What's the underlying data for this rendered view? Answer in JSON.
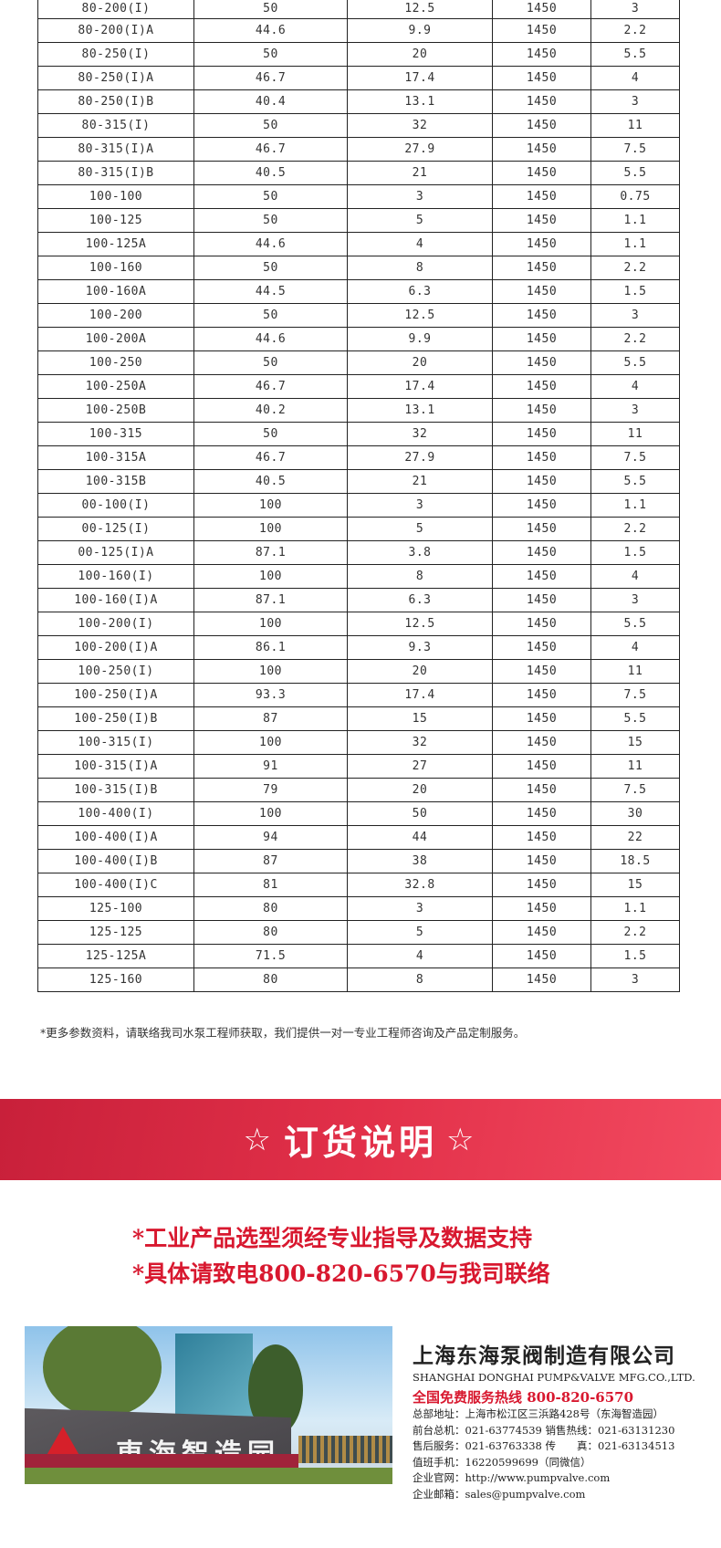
{
  "table": {
    "rows": [
      [
        "80-200(I)",
        "50",
        "12.5",
        "1450",
        "3"
      ],
      [
        "80-200(I)A",
        "44.6",
        "9.9",
        "1450",
        "2.2"
      ],
      [
        "80-250(I)",
        "50",
        "20",
        "1450",
        "5.5"
      ],
      [
        "80-250(I)A",
        "46.7",
        "17.4",
        "1450",
        "4"
      ],
      [
        "80-250(I)B",
        "40.4",
        "13.1",
        "1450",
        "3"
      ],
      [
        "80-315(I)",
        "50",
        "32",
        "1450",
        "11"
      ],
      [
        "80-315(I)A",
        "46.7",
        "27.9",
        "1450",
        "7.5"
      ],
      [
        "80-315(I)B",
        "40.5",
        "21",
        "1450",
        "5.5"
      ],
      [
        "100-100",
        "50",
        "3",
        "1450",
        "0.75"
      ],
      [
        "100-125",
        "50",
        "5",
        "1450",
        "1.1"
      ],
      [
        "100-125A",
        "44.6",
        "4",
        "1450",
        "1.1"
      ],
      [
        "100-160",
        "50",
        "8",
        "1450",
        "2.2"
      ],
      [
        "100-160A",
        "44.5",
        "6.3",
        "1450",
        "1.5"
      ],
      [
        "100-200",
        "50",
        "12.5",
        "1450",
        "3"
      ],
      [
        "100-200A",
        "44.6",
        "9.9",
        "1450",
        "2.2"
      ],
      [
        "100-250",
        "50",
        "20",
        "1450",
        "5.5"
      ],
      [
        "100-250A",
        "46.7",
        "17.4",
        "1450",
        "4"
      ],
      [
        "100-250B",
        "40.2",
        "13.1",
        "1450",
        "3"
      ],
      [
        "100-315",
        "50",
        "32",
        "1450",
        "11"
      ],
      [
        "100-315A",
        "46.7",
        "27.9",
        "1450",
        "7.5"
      ],
      [
        "100-315B",
        "40.5",
        "21",
        "1450",
        "5.5"
      ],
      [
        "00-100(I)",
        "100",
        "3",
        "1450",
        "1.1"
      ],
      [
        "00-125(I)",
        "100",
        "5",
        "1450",
        "2.2"
      ],
      [
        "00-125(I)A",
        "87.1",
        "3.8",
        "1450",
        "1.5"
      ],
      [
        "100-160(I)",
        "100",
        "8",
        "1450",
        "4"
      ],
      [
        "100-160(I)A",
        "87.1",
        "6.3",
        "1450",
        "3"
      ],
      [
        "100-200(I)",
        "100",
        "12.5",
        "1450",
        "5.5"
      ],
      [
        "100-200(I)A",
        "86.1",
        "9.3",
        "1450",
        "4"
      ],
      [
        "100-250(I)",
        "100",
        "20",
        "1450",
        "11"
      ],
      [
        "100-250(I)A",
        "93.3",
        "17.4",
        "1450",
        "7.5"
      ],
      [
        "100-250(I)B",
        "87",
        "15",
        "1450",
        "5.5"
      ],
      [
        "100-315(I)",
        "100",
        "32",
        "1450",
        "15"
      ],
      [
        "100-315(I)A",
        "91",
        "27",
        "1450",
        "11"
      ],
      [
        "100-315(I)B",
        "79",
        "20",
        "1450",
        "7.5"
      ],
      [
        "100-400(I)",
        "100",
        "50",
        "1450",
        "30"
      ],
      [
        "100-400(I)A",
        "94",
        "44",
        "1450",
        "22"
      ],
      [
        "100-400(I)B",
        "87",
        "38",
        "1450",
        "18.5"
      ],
      [
        "100-400(I)C",
        "81",
        "32.8",
        "1450",
        "15"
      ],
      [
        "125-100",
        "80",
        "3",
        "1450",
        "1.1"
      ],
      [
        "125-125",
        "80",
        "5",
        "1450",
        "2.2"
      ],
      [
        "125-125A",
        "71.5",
        "4",
        "1450",
        "1.5"
      ],
      [
        "125-160",
        "80",
        "8",
        "1450",
        "3"
      ]
    ]
  },
  "note": "*更多参数资料，请联络我司水泵工程师获取，我们提供一对一专业工程师咨询及产品定制服务。",
  "banner": {
    "star": "☆",
    "title": "订货说明",
    "color": "#e23049"
  },
  "order_lines": [
    "*工业产品选型须经专业指导及数据支持",
    "*具体请致电800-820-6570与我司联络"
  ],
  "photo": {
    "sign_text": "東海智造园"
  },
  "company": {
    "name_cn": "上海东海泵阀制造有限公司",
    "name_en": "SHANGHAI DONGHAI PUMP&VALVE MFG.CO.,LTD.",
    "hotline": "全国免费服务热线  800-820-6570",
    "lines": [
      "总部地址：上海市松江区三浜路428号（东海智造园）",
      "前台总机：021-63774539   销售热线：021-63131230",
      "售后服务：021-63763338   传　　真：021-63134513",
      "值班手机：16220599699（同微信）",
      "企业官网：http://www.pumpvalve.com",
      "企业邮箱：sales@pumpvalve.com"
    ]
  }
}
